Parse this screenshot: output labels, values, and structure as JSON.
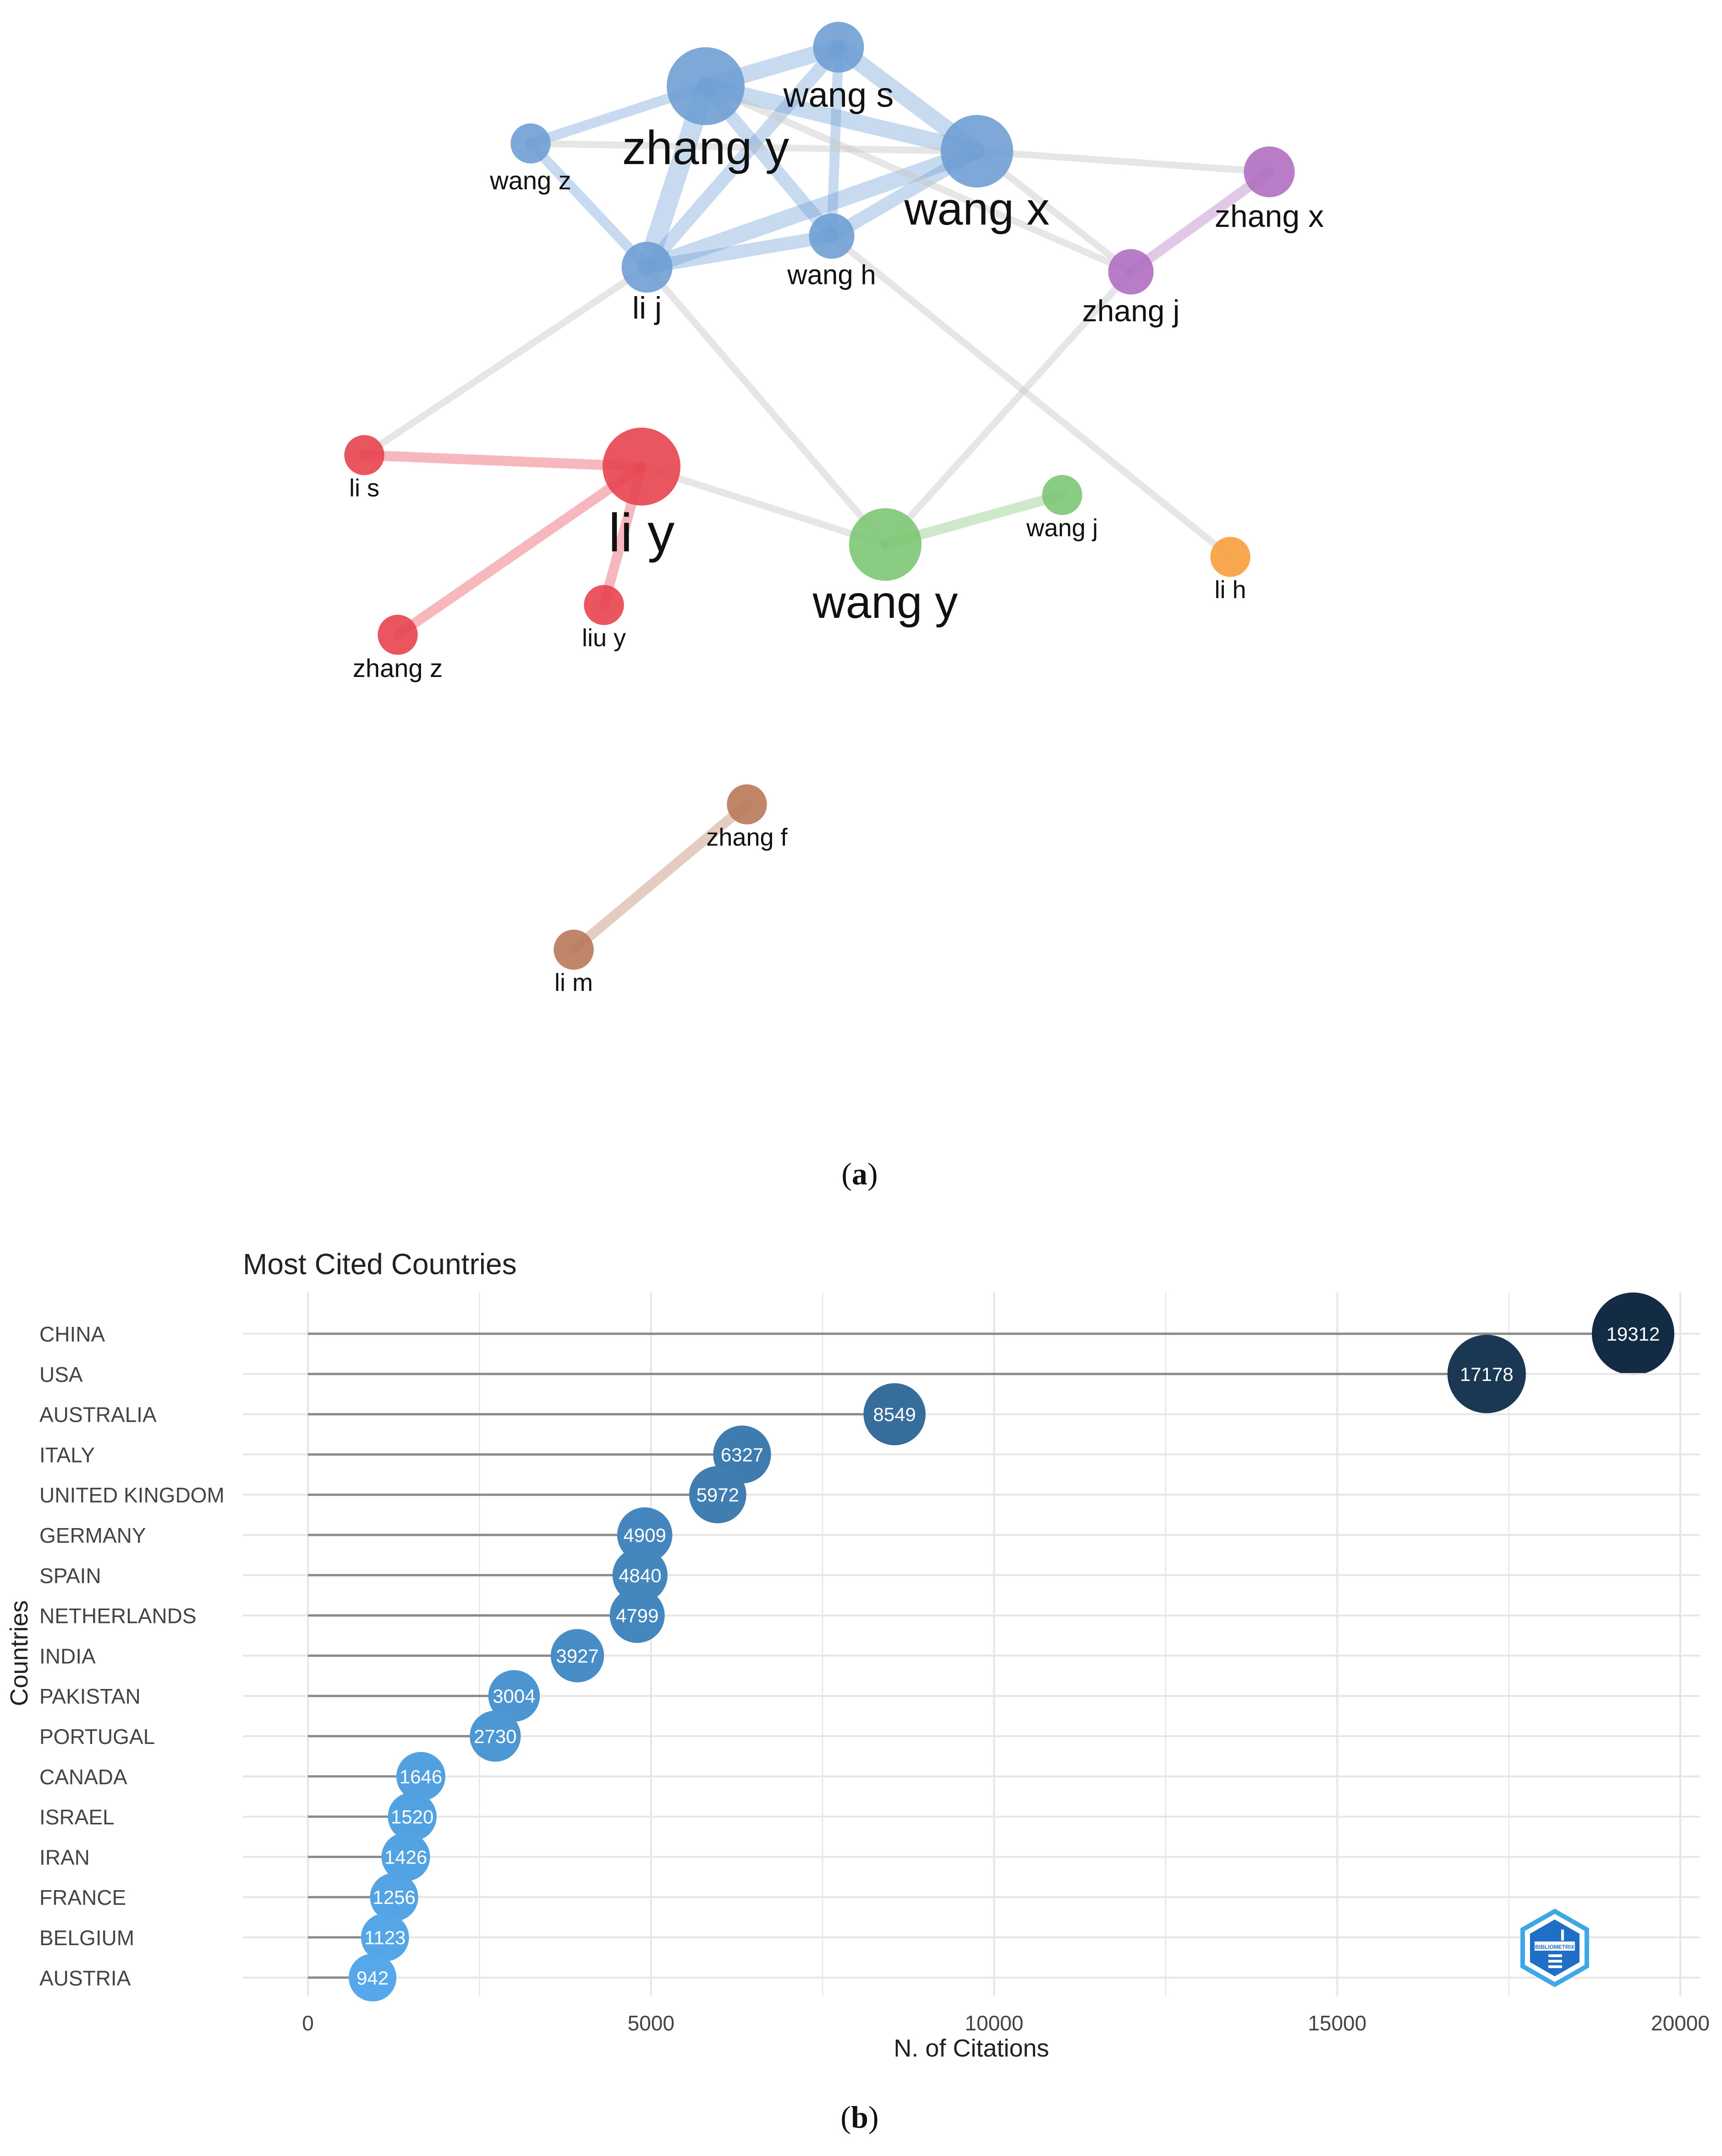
{
  "figure": {
    "caption_a": {
      "open": "(",
      "letter": "a",
      "close": ")"
    },
    "caption_b": {
      "open": "(",
      "letter": "b",
      "close": ")"
    }
  },
  "network": {
    "colors": {
      "blue": "#6f9fd4",
      "red": "#e8444f",
      "green": "#7dc673",
      "purple": "#b06fc0",
      "orange": "#f7a03c",
      "brown": "#b9795a",
      "edge": "#c8c8c8"
    },
    "nodes": [
      {
        "id": "zhang y",
        "label": "zhang y",
        "cluster": "blue",
        "weight": 10
      },
      {
        "id": "wang s",
        "label": "wang s",
        "cluster": "blue",
        "weight": 5
      },
      {
        "id": "wang x",
        "label": "wang x",
        "cluster": "blue",
        "weight": 9
      },
      {
        "id": "wang z",
        "label": "wang z",
        "cluster": "blue",
        "weight": 3
      },
      {
        "id": "wang h",
        "label": "wang h",
        "cluster": "blue",
        "weight": 4
      },
      {
        "id": "li j",
        "label": "li j",
        "cluster": "blue",
        "weight": 5
      },
      {
        "id": "zhang x",
        "label": "zhang x",
        "cluster": "purple",
        "weight": 5
      },
      {
        "id": "zhang j",
        "label": "zhang j",
        "cluster": "purple",
        "weight": 4
      },
      {
        "id": "li s",
        "label": "li s",
        "cluster": "red",
        "weight": 3
      },
      {
        "id": "li y",
        "label": "li y",
        "cluster": "red",
        "weight": 10
      },
      {
        "id": "zhang z",
        "label": "zhang z",
        "cluster": "red",
        "weight": 3
      },
      {
        "id": "liu y",
        "label": "liu y",
        "cluster": "red",
        "weight": 3
      },
      {
        "id": "wang y",
        "label": "wang y",
        "cluster": "green",
        "weight": 9
      },
      {
        "id": "wang j",
        "label": "wang j",
        "cluster": "green",
        "weight": 3
      },
      {
        "id": "li h",
        "label": "li h",
        "cluster": "orange",
        "weight": 3
      },
      {
        "id": "zhang f",
        "label": "zhang f",
        "cluster": "brown",
        "weight": 3
      },
      {
        "id": "li m",
        "label": "li m",
        "cluster": "brown",
        "weight": 3
      }
    ],
    "edges": [
      {
        "from": "zhang y",
        "to": "wang s",
        "strength": 4,
        "color": "blue"
      },
      {
        "from": "zhang y",
        "to": "wang x",
        "strength": 4,
        "color": "blue"
      },
      {
        "from": "zhang y",
        "to": "li j",
        "strength": 5,
        "color": "blue"
      },
      {
        "from": "zhang y",
        "to": "wang h",
        "strength": 3,
        "color": "blue"
      },
      {
        "from": "zhang y",
        "to": "wang z",
        "strength": 2,
        "color": "blue"
      },
      {
        "from": "wang s",
        "to": "wang x",
        "strength": 4,
        "color": "blue"
      },
      {
        "from": "wang s",
        "to": "li j",
        "strength": 3,
        "color": "blue"
      },
      {
        "from": "wang s",
        "to": "wang h",
        "strength": 2,
        "color": "blue"
      },
      {
        "from": "wang x",
        "to": "li j",
        "strength": 4,
        "color": "blue"
      },
      {
        "from": "wang x",
        "to": "wang h",
        "strength": 3,
        "color": "blue"
      },
      {
        "from": "wang z",
        "to": "li j",
        "strength": 2,
        "color": "blue"
      },
      {
        "from": "wang z",
        "to": "wang x",
        "strength": 1,
        "color": "edge"
      },
      {
        "from": "li j",
        "to": "wang h",
        "strength": 3,
        "color": "blue"
      },
      {
        "from": "wang x",
        "to": "zhang x",
        "strength": 1,
        "color": "edge"
      },
      {
        "from": "wang x",
        "to": "zhang j",
        "strength": 1,
        "color": "edge"
      },
      {
        "from": "zhang y",
        "to": "zhang j",
        "strength": 1,
        "color": "edge"
      },
      {
        "from": "zhang j",
        "to": "zhang x",
        "strength": 2,
        "color": "purple"
      },
      {
        "from": "zhang j",
        "to": "wang y",
        "strength": 1,
        "color": "edge"
      },
      {
        "from": "li j",
        "to": "li s",
        "strength": 1,
        "color": "edge"
      },
      {
        "from": "li j",
        "to": "wang y",
        "strength": 1,
        "color": "edge"
      },
      {
        "from": "wang h",
        "to": "li h",
        "strength": 1,
        "color": "edge"
      },
      {
        "from": "li s",
        "to": "li y",
        "strength": 2,
        "color": "red"
      },
      {
        "from": "li y",
        "to": "zhang z",
        "strength": 2,
        "color": "red"
      },
      {
        "from": "li y",
        "to": "liu y",
        "strength": 2,
        "color": "red"
      },
      {
        "from": "li y",
        "to": "wang y",
        "strength": 1,
        "color": "edge"
      },
      {
        "from": "wang y",
        "to": "wang j",
        "strength": 2,
        "color": "green"
      },
      {
        "from": "zhang f",
        "to": "li m",
        "strength": 2,
        "color": "brown"
      }
    ]
  },
  "chart_data": {
    "type": "lollipop",
    "title": "Most Cited Countries",
    "xlabel": "N. of Citations",
    "ylabel": "Countries",
    "xlim": [
      0,
      20000
    ],
    "xticks": [
      0,
      5000,
      10000,
      15000,
      20000
    ],
    "xtick_labels": [
      "0",
      "5000",
      "10000",
      "15000",
      "20000"
    ],
    "grid": true,
    "categories": [
      "CHINA",
      "USA",
      "AUSTRALIA",
      "ITALY",
      "UNITED KINGDOM",
      "GERMANY",
      "SPAIN",
      "NETHERLANDS",
      "INDIA",
      "PAKISTAN",
      "PORTUGAL",
      "CANADA",
      "ISRAEL",
      "IRAN",
      "FRANCE",
      "BELGIUM",
      "AUSTRIA"
    ],
    "values": [
      19312,
      17178,
      8549,
      6327,
      5972,
      4909,
      4840,
      4799,
      3927,
      3004,
      2730,
      1646,
      1520,
      1426,
      1256,
      1123,
      942
    ],
    "value_labels": [
      "19312",
      "17178",
      "8549",
      "6327",
      "5972",
      "4909",
      "4840",
      "4799",
      "3927",
      "3004",
      "2730",
      "1646",
      "1520",
      "1426",
      "1256",
      "1123",
      "942"
    ],
    "color_low": "#56a8ea",
    "color_high": "#132b43",
    "line_color": "#8a8a8a",
    "grid_color": "#e6e6e6",
    "logo": {
      "name": "bibliometrix-logo-icon",
      "text": "BIBLIOMETRIX"
    }
  }
}
